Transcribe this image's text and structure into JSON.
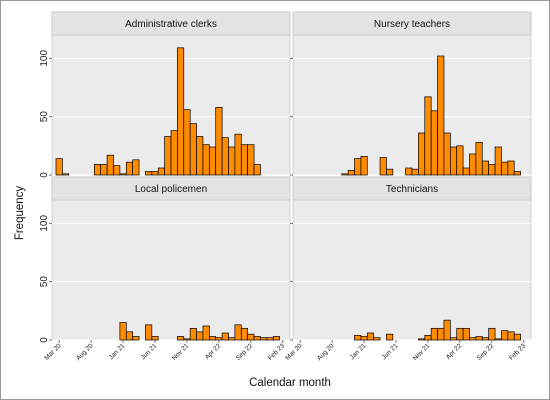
{
  "chart_data": {
    "type": "bar",
    "xlabel": "Calendar month",
    "ylabel": "Frequency",
    "ylim": [
      0,
      120
    ],
    "yticks": [
      "0",
      "50",
      "100"
    ],
    "grid": true,
    "bar_color": "#FF8C00",
    "bar_edge_color": "#000000",
    "strip_color": "#E3E3E3",
    "panel_bg": "#EBEBEB",
    "x_tick_labels": [
      "Mar 20",
      "Aug 20",
      "Jan 21",
      "Jun 21",
      "Nov 21",
      "Apr 22",
      "Sep 22",
      "Feb 23"
    ],
    "months": [
      "Mar 20",
      "Apr 20",
      "May 20",
      "Jun 20",
      "Jul 20",
      "Aug 20",
      "Sep 20",
      "Oct 20",
      "Nov 20",
      "Dec 20",
      "Jan 21",
      "Feb 21",
      "Mar 21",
      "Apr 21",
      "May 21",
      "Jun 21",
      "Jul 21",
      "Aug 21",
      "Sep 21",
      "Oct 21",
      "Nov 21",
      "Dec 21",
      "Jan 22",
      "Feb 22",
      "Mar 22",
      "Apr 22",
      "May 22",
      "Jun 22",
      "Jul 22",
      "Aug 22",
      "Sep 22",
      "Oct 22",
      "Nov 22",
      "Dec 22",
      "Jan 23",
      "Feb 23"
    ],
    "panels": [
      {
        "title": "Administrative clerks",
        "values": [
          14,
          1,
          0,
          0,
          0,
          0,
          9,
          9,
          17,
          8,
          1,
          11,
          13,
          0,
          3,
          3,
          6,
          33,
          38,
          109,
          56,
          44,
          33,
          26,
          24,
          58,
          32,
          24,
          35,
          26,
          26,
          9,
          0,
          0,
          0,
          0
        ]
      },
      {
        "title": "Nursery teachers",
        "values": [
          0,
          0,
          0,
          0,
          0,
          0,
          0,
          1,
          4,
          14,
          16,
          0,
          0,
          15,
          5,
          0,
          0,
          6,
          5,
          36,
          67,
          55,
          102,
          36,
          24,
          25,
          6,
          18,
          28,
          12,
          9,
          24,
          11,
          12,
          3,
          0
        ]
      },
      {
        "title": "Local policemen",
        "values": [
          0,
          0,
          0,
          0,
          0,
          0,
          0,
          0,
          0,
          0,
          15,
          7,
          3,
          0,
          13,
          3,
          0,
          0,
          0,
          3,
          1,
          10,
          7,
          12,
          3,
          2,
          6,
          2,
          13,
          10,
          5,
          3,
          2,
          2,
          3,
          0
        ]
      },
      {
        "title": "Technicians",
        "values": [
          0,
          0,
          0,
          0,
          0,
          0,
          0,
          0,
          0,
          4,
          3,
          6,
          2,
          0,
          5,
          0,
          0,
          0,
          0,
          1,
          4,
          10,
          10,
          17,
          2,
          10,
          10,
          2,
          3,
          2,
          10,
          1,
          8,
          7,
          5,
          0
        ]
      }
    ]
  }
}
